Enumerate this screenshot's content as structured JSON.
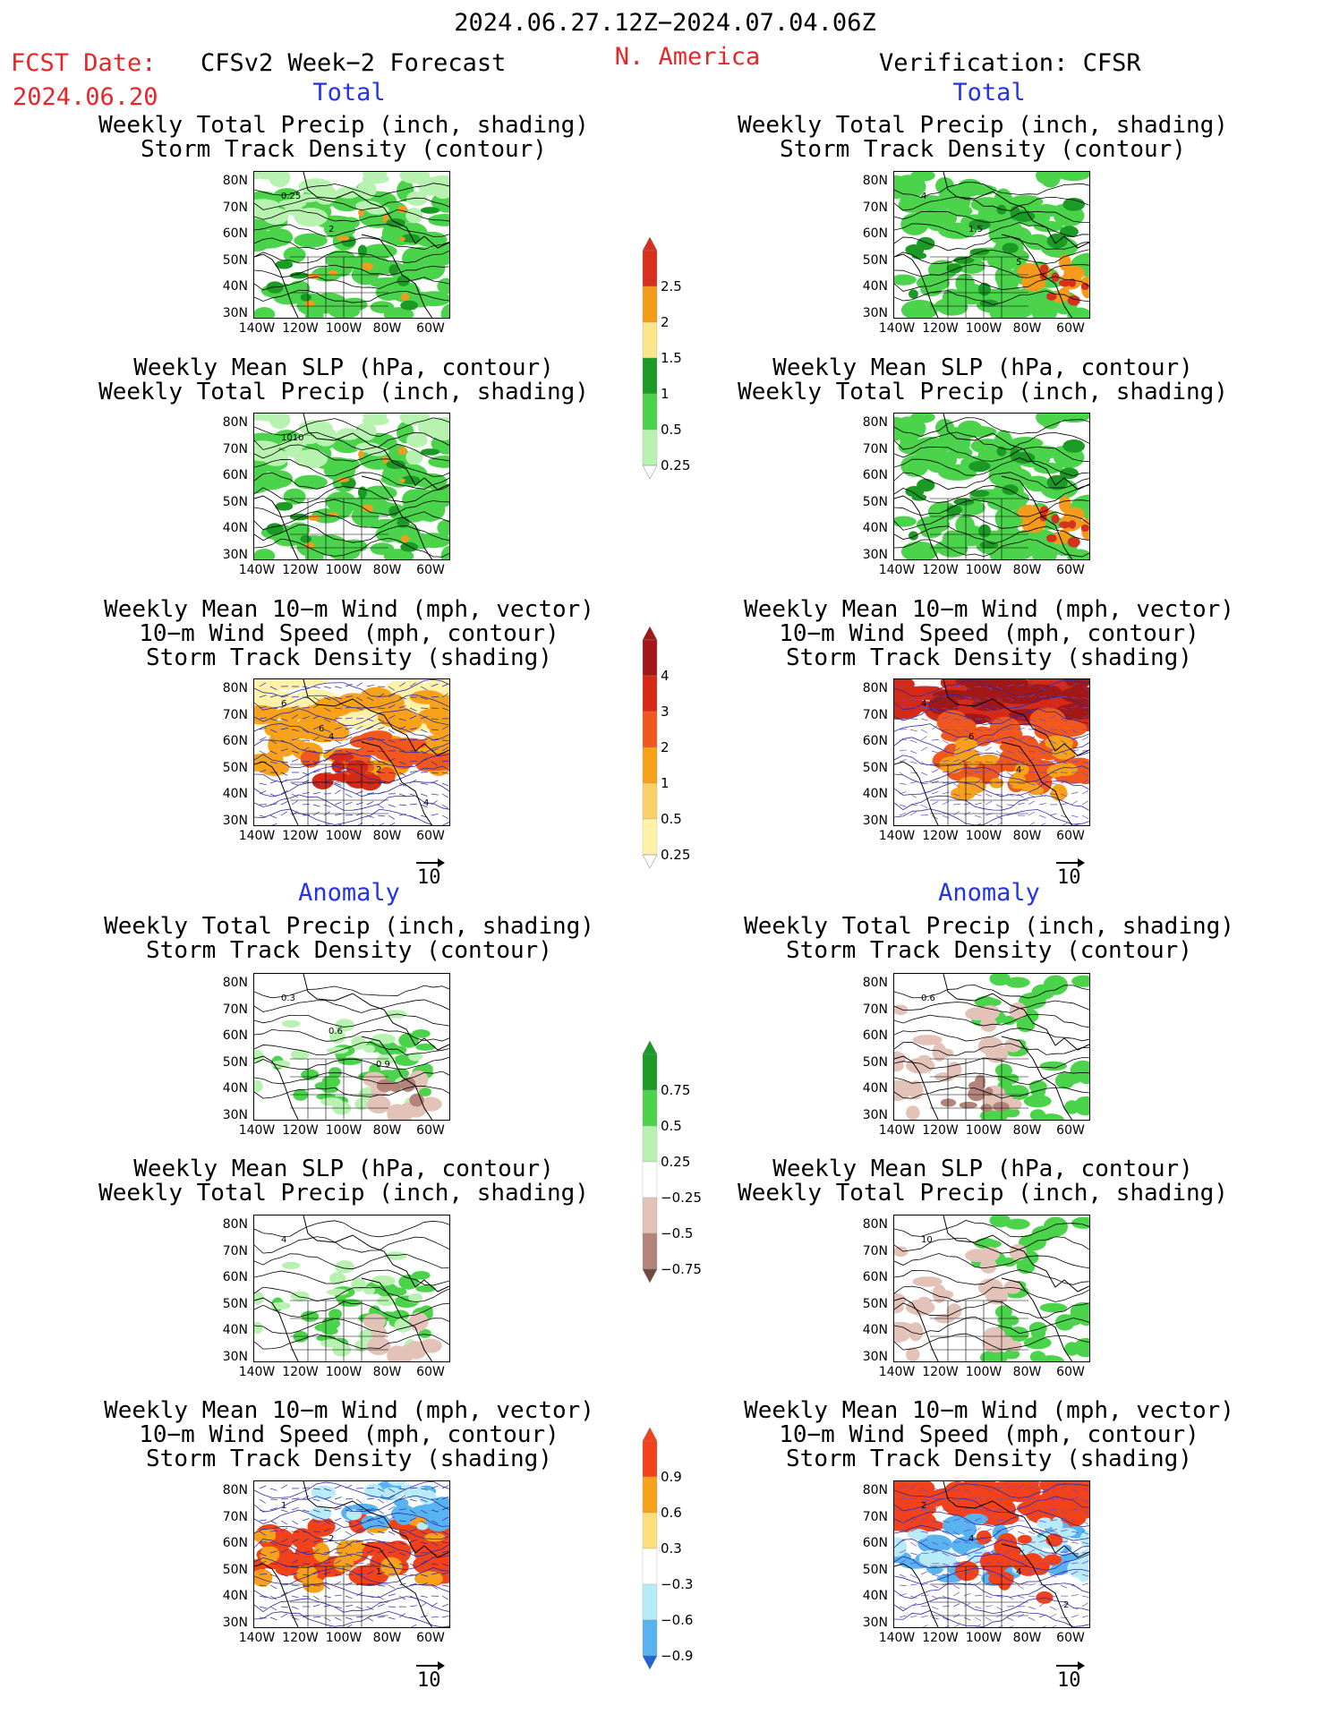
{
  "header": {
    "period": "2024.06.27.12Z−2024.07.04.06Z",
    "fcst_label": "FCST Date:",
    "fcst_date": "2024.06.20",
    "model": "CFSv2 Week−2 Forecast",
    "region": "N. America",
    "verification": "Verification: CFSR"
  },
  "sections": {
    "total": "Total",
    "anomaly": "Anomaly"
  },
  "titles": {
    "precip_storm": [
      "Weekly Total Precip (inch, shading)",
      "Storm Track Density (contour)"
    ],
    "slp_precip": [
      "Weekly Mean SLP (hPa, contour)",
      "Weekly Total Precip (inch, shading)"
    ],
    "wind_storm": [
      "Weekly Mean 10−m Wind (mph, vector)",
      "10−m Wind Speed (mph, contour)",
      "Storm Track Density (shading)"
    ]
  },
  "axes": {
    "lat": [
      "80N",
      "70N",
      "60N",
      "50N",
      "40N",
      "30N"
    ],
    "lon": [
      "140W",
      "120W",
      "100W",
      "80W",
      "60W"
    ]
  },
  "vector_ref": "10",
  "contour_labels": {
    "p1_left": [
      "0.25",
      "2"
    ],
    "p1_right": [
      "4",
      "1.5",
      "5"
    ],
    "p2_left": [
      "1010"
    ],
    "p3_left": [
      "6",
      "4",
      "2",
      "4",
      "6"
    ],
    "p3_right": [
      "4",
      "6",
      "4"
    ],
    "p4_left": [
      "0.3",
      "0.6",
      "0.9"
    ],
    "p4_right": [
      "0.6"
    ],
    "p5_left": [
      "4"
    ],
    "p5_right": [
      "10"
    ],
    "p6_left": [
      "1",
      "2",
      "1"
    ],
    "p6_right": [
      "2",
      "4",
      "4",
      "2"
    ]
  },
  "colorbars": {
    "precip_total": {
      "labels": [
        "2.5",
        "2",
        "1.5",
        "1",
        "0.5",
        "0.25"
      ],
      "colors": [
        "#d7301f",
        "#f59b1c",
        "#fbe58a",
        "#1b9b25",
        "#4cd34c",
        "#b8f2b0"
      ]
    },
    "storm_total": {
      "labels": [
        "4",
        "3",
        "2",
        "1",
        "0.5",
        "0.25"
      ],
      "colors": [
        "#a11816",
        "#d52a16",
        "#f0581d",
        "#f7a21a",
        "#fbd067",
        "#fdf2a8"
      ]
    },
    "precip_anom": {
      "labels": [
        "0.75",
        "0.5",
        "0.25",
        "−0.25",
        "−0.5",
        "−0.75"
      ],
      "colors": [
        "#1b9b25",
        "#4cd34c",
        "#b8f2b0",
        "#ffffff",
        "#e3c2b8",
        "#b3857a",
        "#6e4a3f"
      ]
    },
    "storm_anom": {
      "labels": [
        "0.9",
        "0.6",
        "0.3",
        "−0.3",
        "−0.6",
        "−0.9"
      ],
      "colors": [
        "#f2421b",
        "#f7a21a",
        "#fbe07a",
        "#ffffff",
        "#b6ebf7",
        "#58b4f0",
        "#1e66d6"
      ]
    }
  }
}
